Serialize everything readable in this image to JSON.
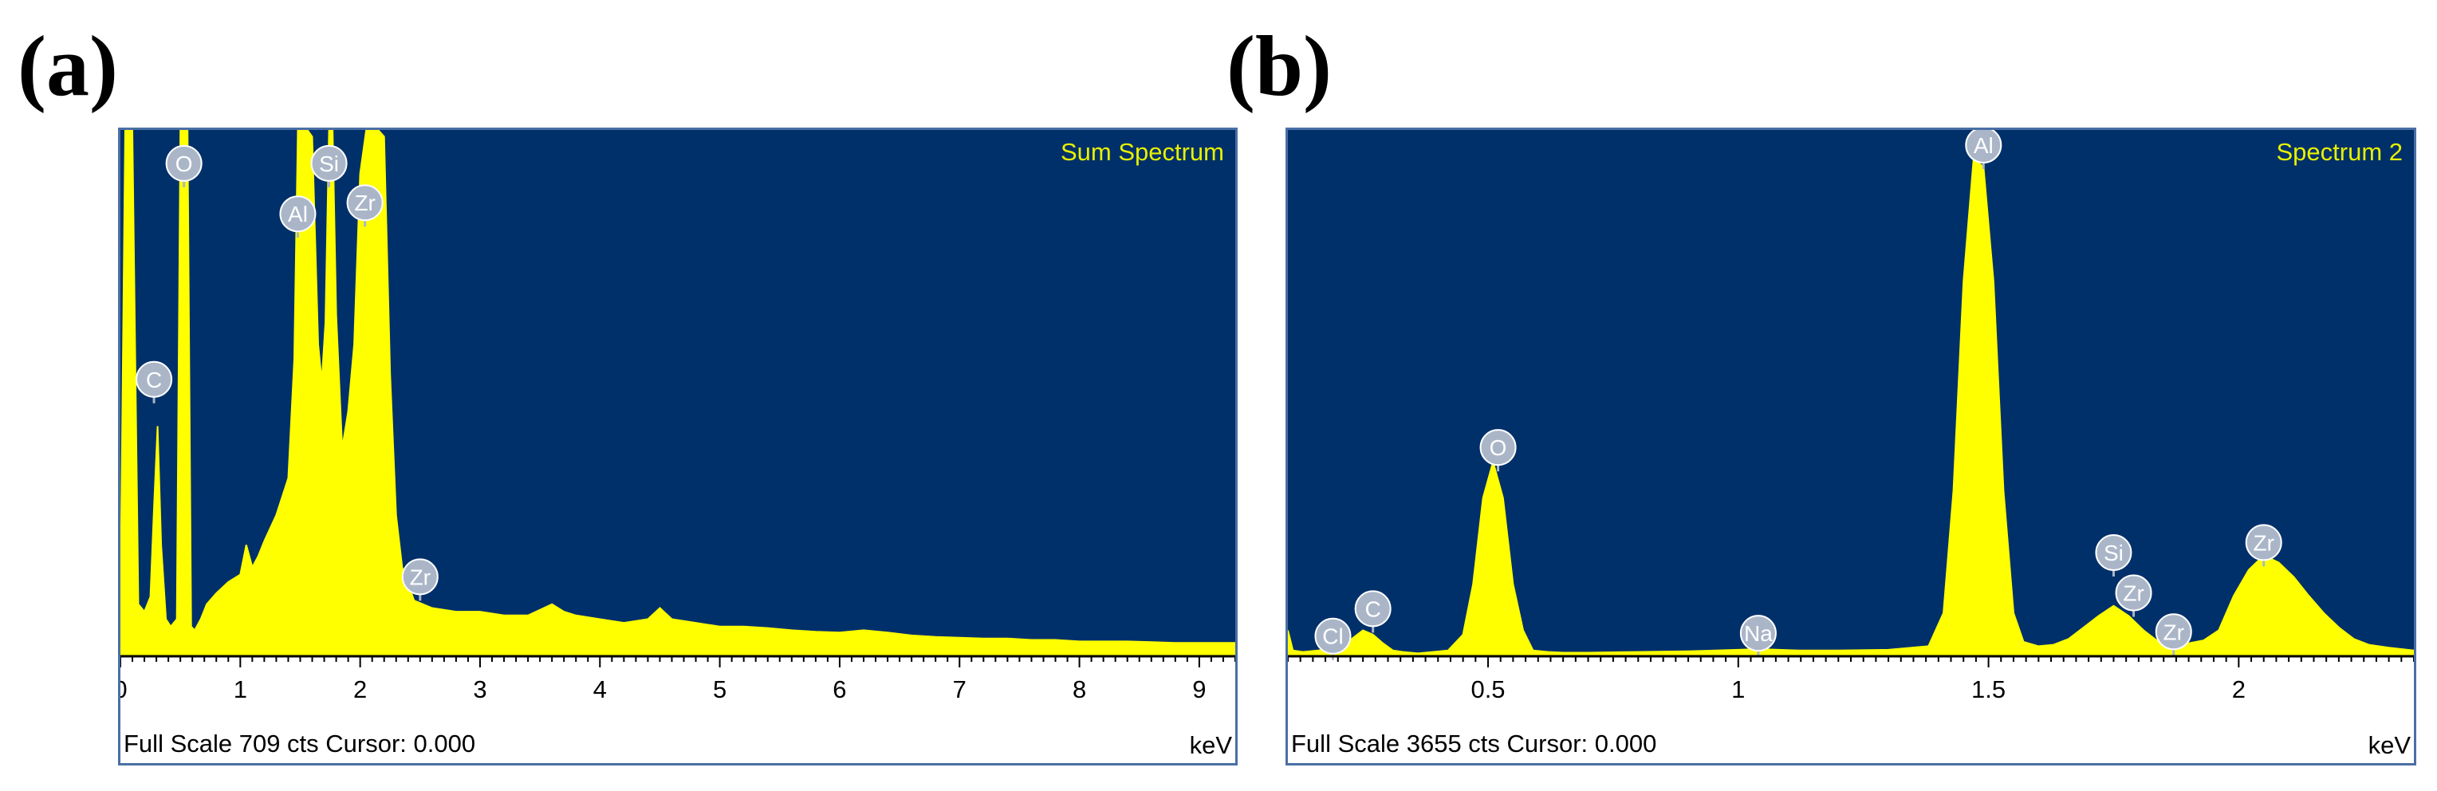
{
  "panels": {
    "a": {
      "letter": "(a)"
    },
    "b": {
      "letter": "(b)"
    }
  },
  "colors": {
    "plot_bg": "#00306a",
    "spectrum": "#ffff00",
    "label_text": "#e8f000",
    "element_badge": "#aab6c8",
    "frame": "#4a6fa5"
  },
  "chart_data": [
    {
      "type": "area",
      "title": "Sum Spectrum",
      "xlabel": "keV",
      "xlim": [
        0,
        9.3
      ],
      "ylim": [
        0,
        709
      ],
      "x_ticks": [
        0,
        1,
        2,
        3,
        4,
        5,
        6,
        7,
        8,
        9
      ],
      "full_scale_text": "Full Scale 709 cts Cursor: 0.000",
      "series": [
        {
          "x": [
            0.0,
            0.04,
            0.1,
            0.15,
            0.2,
            0.25,
            0.28,
            0.31,
            0.34,
            0.38,
            0.42,
            0.47,
            0.5,
            0.53,
            0.56,
            0.59,
            0.62,
            0.67,
            0.72,
            0.8,
            0.9,
            1.0,
            1.05,
            1.1,
            1.15,
            1.2,
            1.3,
            1.4,
            1.45,
            1.48,
            1.52,
            1.56,
            1.6,
            1.65,
            1.68,
            1.71,
            1.74,
            1.77,
            1.8,
            1.85,
            1.9,
            1.95,
            2.0,
            2.05,
            2.1,
            2.15,
            2.2,
            2.25,
            2.3,
            2.35,
            2.45,
            2.6,
            2.8,
            3.0,
            3.2,
            3.4,
            3.6,
            3.7,
            3.8,
            4.0,
            4.2,
            4.4,
            4.5,
            4.6,
            4.8,
            5.0,
            5.2,
            5.4,
            5.6,
            5.8,
            6.0,
            6.2,
            6.4,
            6.6,
            6.8,
            7.0,
            7.2,
            7.4,
            7.6,
            7.8,
            8.0,
            8.2,
            8.4,
            8.6,
            8.8,
            9.0,
            9.3
          ],
          "y": [
            70,
            709,
            709,
            70,
            60,
            80,
            200,
            310,
            150,
            50,
            40,
            50,
            709,
            709,
            709,
            40,
            35,
            50,
            70,
            85,
            100,
            110,
            150,
            120,
            135,
            155,
            190,
            240,
            400,
            709,
            709,
            709,
            700,
            420,
            370,
            450,
            709,
            709,
            460,
            280,
            330,
            420,
            650,
            709,
            709,
            709,
            700,
            380,
            190,
            120,
            75,
            65,
            60,
            60,
            55,
            55,
            70,
            60,
            55,
            50,
            45,
            50,
            65,
            50,
            45,
            40,
            40,
            38,
            35,
            33,
            32,
            35,
            32,
            28,
            26,
            25,
            24,
            24,
            22,
            22,
            20,
            20,
            20,
            19,
            18,
            18,
            18
          ]
        }
      ],
      "peak_labels": [
        {
          "label": "O",
          "x": 0.53,
          "y": 664
        },
        {
          "label": "C",
          "x": 0.28,
          "y": 373
        },
        {
          "label": "Al",
          "x": 1.48,
          "y": 596
        },
        {
          "label": "Si",
          "x": 1.74,
          "y": 664
        },
        {
          "label": "Zr",
          "x": 2.04,
          "y": 611
        },
        {
          "label": "Zr",
          "x": 2.5,
          "y": 107
        }
      ]
    },
    {
      "type": "area",
      "title": "Spectrum 2",
      "xlabel": "keV",
      "xlim": [
        0.1,
        2.35
      ],
      "ylim": [
        0,
        3655
      ],
      "x_ticks": [
        0.5,
        1,
        1.5,
        2
      ],
      "x_tick_labels": [
        "0.5",
        "1",
        "1.5",
        "2"
      ],
      "full_scale_text": "Full Scale 3655 cts Cursor: 0.000",
      "series": [
        {
          "x": [
            0.1,
            0.11,
            0.13,
            0.16,
            0.19,
            0.22,
            0.25,
            0.27,
            0.29,
            0.31,
            0.33,
            0.36,
            0.39,
            0.42,
            0.45,
            0.47,
            0.49,
            0.51,
            0.53,
            0.55,
            0.57,
            0.59,
            0.62,
            0.65,
            0.7,
            0.8,
            0.9,
            1.0,
            1.04,
            1.08,
            1.12,
            1.2,
            1.3,
            1.38,
            1.41,
            1.43,
            1.45,
            1.47,
            1.49,
            1.51,
            1.53,
            1.55,
            1.57,
            1.6,
            1.63,
            1.66,
            1.69,
            1.72,
            1.75,
            1.78,
            1.81,
            1.84,
            1.87,
            1.9,
            1.93,
            1.96,
            1.99,
            2.02,
            2.05,
            2.08,
            2.11,
            2.14,
            2.17,
            2.2,
            2.23,
            2.26,
            2.3,
            2.35
          ],
          "y": [
            180,
            40,
            30,
            40,
            60,
            100,
            180,
            150,
            90,
            40,
            30,
            20,
            30,
            40,
            150,
            500,
            1100,
            1350,
            1100,
            500,
            180,
            40,
            30,
            25,
            25,
            30,
            35,
            45,
            50,
            45,
            40,
            40,
            45,
            70,
            300,
            1150,
            2600,
            3450,
            3400,
            2600,
            1150,
            300,
            100,
            70,
            80,
            120,
            200,
            280,
            350,
            280,
            180,
            100,
            80,
            90,
            110,
            180,
            420,
            600,
            700,
            650,
            550,
            420,
            300,
            200,
            120,
            80,
            60,
            40
          ]
        }
      ],
      "peak_labels": [
        {
          "label": "Cl",
          "x": 0.19,
          "y": 140
        },
        {
          "label": "C",
          "x": 0.27,
          "y": 330
        },
        {
          "label": "O",
          "x": 0.52,
          "y": 1450
        },
        {
          "label": "Na",
          "x": 1.04,
          "y": 160
        },
        {
          "label": "Al",
          "x": 1.49,
          "y": 3550
        },
        {
          "label": "Si",
          "x": 1.75,
          "y": 720
        },
        {
          "label": "Zr",
          "x": 1.79,
          "y": 440
        },
        {
          "label": "Zr",
          "x": 1.87,
          "y": 170
        },
        {
          "label": "Zr",
          "x": 2.05,
          "y": 790
        }
      ]
    }
  ]
}
